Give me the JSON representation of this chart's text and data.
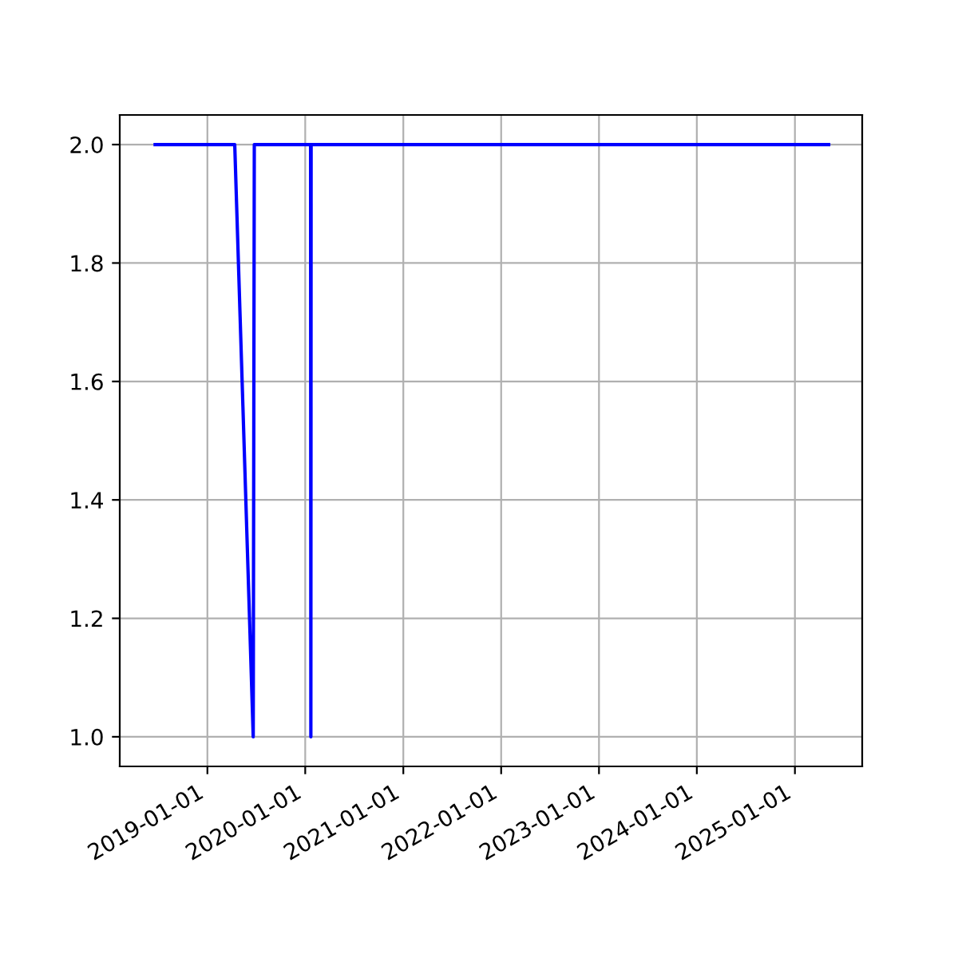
{
  "chart_data": {
    "type": "line",
    "x": [
      "2018-06-20",
      "2019-04-13",
      "2019-06-21",
      "2019-06-25",
      "2020-01-21",
      "2020-01-22",
      "2020-01-23",
      "2025-05-07"
    ],
    "series": [
      {
        "color": "#0000ff",
        "values": [
          2,
          2,
          1,
          2,
          2,
          1,
          2,
          2
        ]
      }
    ],
    "xlim": [
      "2018-02-08",
      "2025-09-09"
    ],
    "xticks": [
      "2019-01-01",
      "2020-01-01",
      "2021-01-01",
      "2022-01-01",
      "2023-01-01",
      "2024-01-01",
      "2025-01-01"
    ],
    "ylim": [
      0.95,
      2.05
    ],
    "yticks": [
      {
        "value": 1.0,
        "label": "1.0"
      },
      {
        "value": 1.2,
        "label": "1.2"
      },
      {
        "value": 1.4,
        "label": "1.4"
      },
      {
        "value": 1.6,
        "label": "1.6"
      },
      {
        "value": 1.8,
        "label": "1.8"
      },
      {
        "value": 2.0,
        "label": "2.0"
      }
    ],
    "grid": true,
    "line_style": "solid"
  }
}
